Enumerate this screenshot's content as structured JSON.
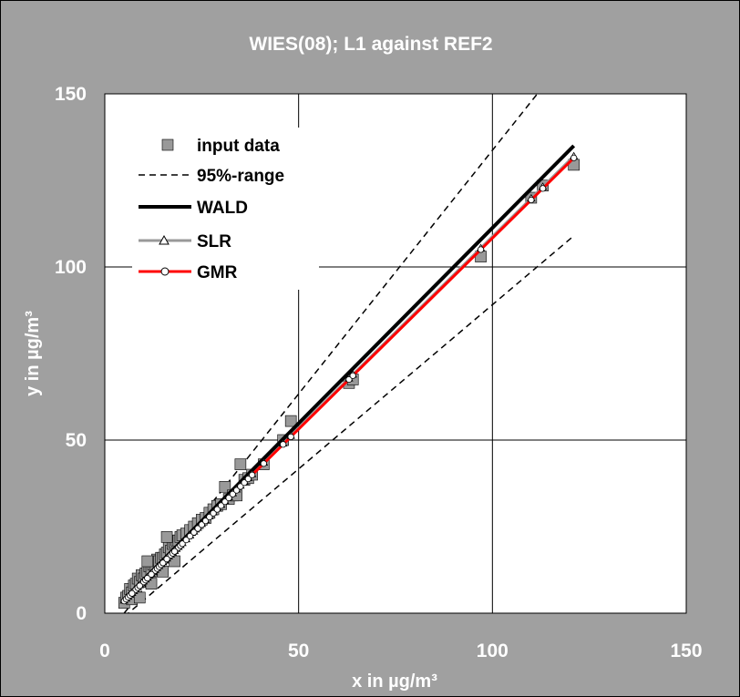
{
  "chart_data": {
    "type": "scatter",
    "title": "WIES(08); L1 against REF2",
    "xlabel": "x in µg/m³",
    "ylabel": "y in µg/m³",
    "xlim": [
      0,
      150
    ],
    "ylim": [
      0,
      150
    ],
    "xticks": [
      "0",
      "50",
      "100",
      "150"
    ],
    "yticks": [
      "0",
      "50",
      "100",
      "150"
    ],
    "grid": true,
    "legend_position": "top-left",
    "colors": {
      "background": "#a0a0a0",
      "plot_area": "#ffffff",
      "input_data": "#999999",
      "ci": "#000000",
      "wald": "#000000",
      "slr": "#999999",
      "gmr": "#ff0000"
    },
    "series": [
      {
        "name": "input data",
        "kind": "markers",
        "marker": "square",
        "x": [
          5.0,
          5.5,
          6.0,
          6.5,
          7.0,
          7.5,
          8.0,
          8.5,
          9.0,
          9.5,
          10.0,
          10.5,
          11.0,
          11.5,
          12.0,
          12.5,
          13.0,
          13.5,
          14.0,
          14.5,
          15.0,
          15.5,
          16.0,
          16.5,
          17.0,
          17.5,
          18.0,
          18.5,
          19.0,
          19.5,
          20.0,
          21.0,
          22.0,
          23.0,
          24.0,
          25.0,
          26.0,
          27.0,
          28.0,
          29.0,
          30.0,
          31.0,
          32.0,
          33.0,
          34.0,
          35.0,
          36.0,
          37.0,
          38.0,
          41.0,
          46.0,
          48.0,
          63.0,
          64.0,
          97.0,
          110.0,
          113.0,
          121.0,
          7.0,
          9.0,
          11.0,
          12.0,
          15.0,
          16.0,
          18.0
        ],
        "y": [
          3.0,
          4.5,
          5.0,
          7.0,
          6.0,
          8.0,
          8.5,
          10.0,
          9.0,
          11.0,
          10.0,
          11.5,
          12.0,
          13.5,
          12.0,
          14.0,
          13.5,
          15.5,
          15.0,
          16.0,
          16.0,
          17.0,
          17.5,
          19.0,
          18.0,
          20.0,
          20.5,
          21.0,
          21.0,
          22.0,
          22.5,
          23.0,
          24.0,
          25.0,
          26.0,
          27.0,
          27.5,
          29.0,
          30.0,
          31.0,
          31.5,
          36.5,
          33.0,
          34.0,
          34.0,
          43.0,
          38.5,
          39.0,
          40.0,
          43.0,
          50.0,
          55.5,
          66.5,
          67.5,
          103.0,
          120.0,
          123.5,
          129.5,
          4.0,
          4.5,
          15.0,
          8.5,
          12.0,
          22.0,
          15.0
        ]
      },
      {
        "name": "95%-range",
        "kind": "dashed",
        "lines": [
          {
            "x": [
              5,
              113
            ],
            "y": [
              0.0,
              152.0
            ]
          },
          {
            "x": [
              5,
              121
            ],
            "y": [
              -1.0,
              109.0
            ]
          }
        ]
      },
      {
        "name": "WALD",
        "kind": "line",
        "x": [
          5,
          121
        ],
        "y": [
          4.0,
          135.0
        ]
      },
      {
        "name": "SLR",
        "kind": "line_markers",
        "marker": "triangle",
        "x": [
          5,
          121
        ],
        "y": [
          3.7,
          132.0
        ]
      },
      {
        "name": "GMR",
        "kind": "line_markers",
        "marker": "circle",
        "x": [
          5,
          121
        ],
        "y": [
          3.5,
          131.5
        ]
      }
    ]
  }
}
